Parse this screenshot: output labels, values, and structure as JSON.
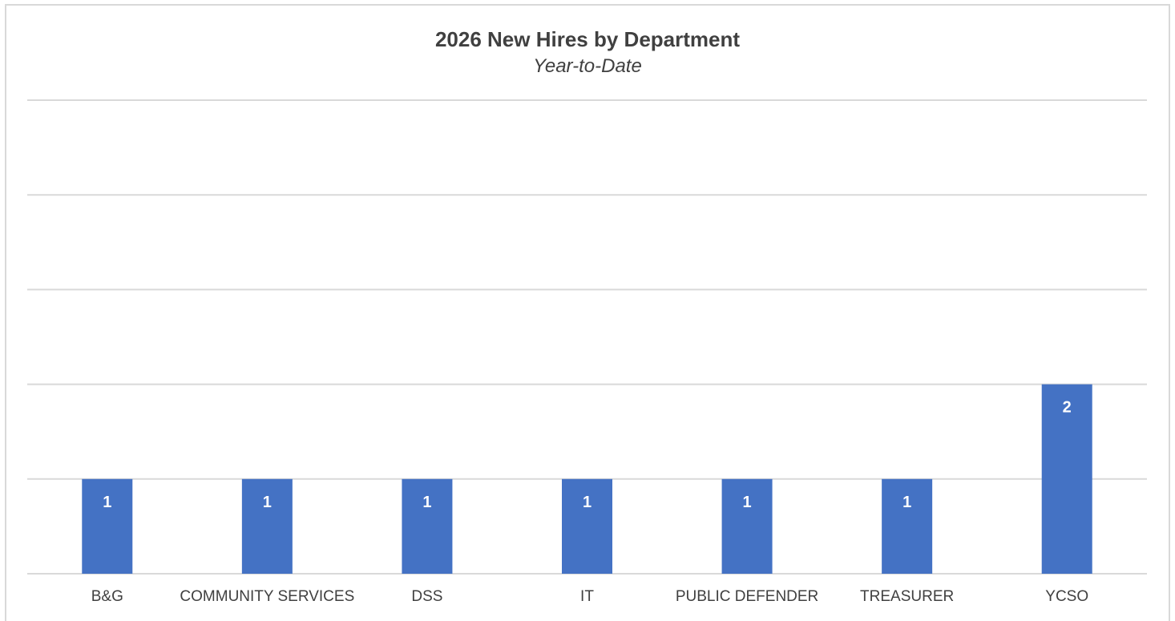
{
  "chart_data": {
    "type": "bar",
    "title": "2026 New Hires by Department",
    "subtitle": "Year-to-Date",
    "categories": [
      "B&G",
      "COMMUNITY SERVICES",
      "DSS",
      "IT",
      "PUBLIC DEFENDER",
      "TREASURER",
      "YCSO"
    ],
    "values": [
      1,
      1,
      1,
      1,
      1,
      1,
      2
    ],
    "data_labels": [
      "1",
      "1",
      "1",
      "1",
      "1",
      "1",
      "2"
    ],
    "ylim": [
      0,
      5
    ],
    "grid": true,
    "legend": "none",
    "bar_color": "#4472c4",
    "gridline_color": "#d9d9d9"
  }
}
